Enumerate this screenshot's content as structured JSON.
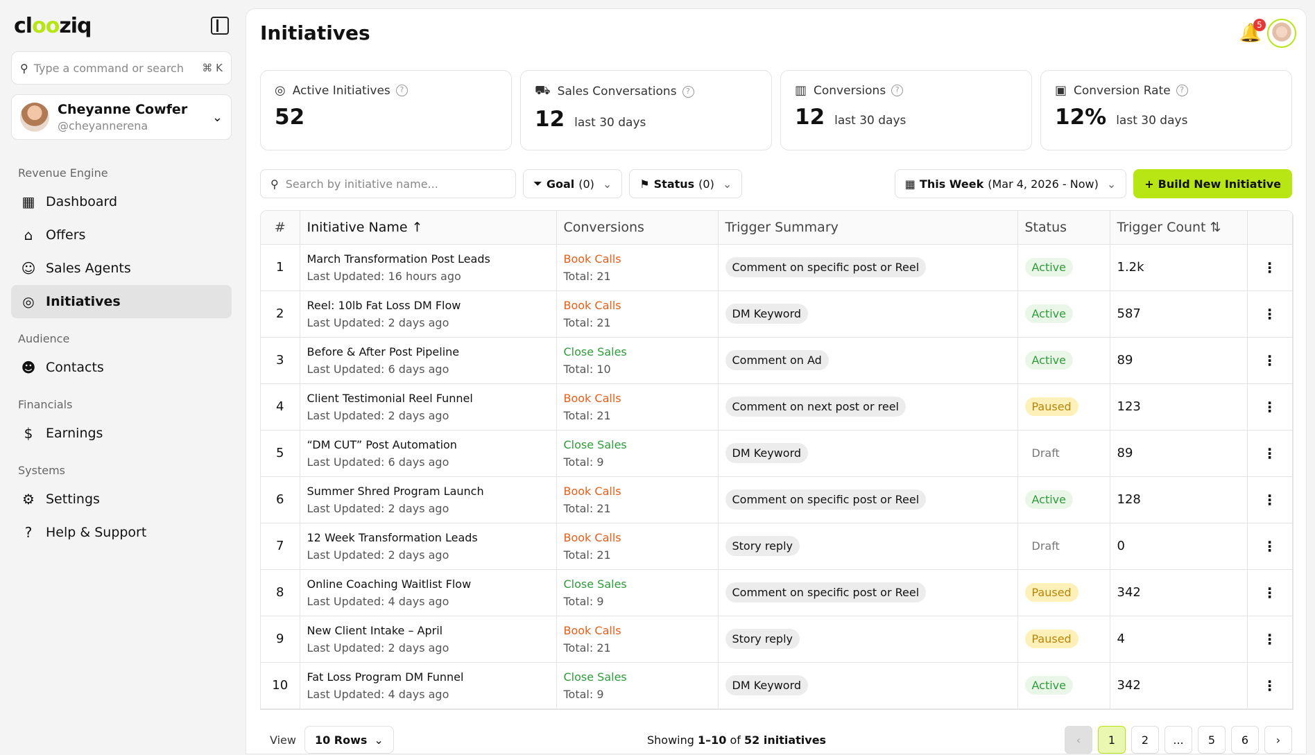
{
  "sidebar": {
    "logo_a": "cl",
    "logo_b": "oo",
    "logo_c": "ziq",
    "search_placeholder": "Type a command or search",
    "search_shortcut": "⌘ K",
    "user": {
      "name": "Cheyanne Cowfer",
      "handle": "@cheyannerena"
    },
    "sections": [
      {
        "label": "Revenue Engine",
        "items": [
          {
            "label": "Dashboard",
            "icon": "dashboard-icon",
            "glyph": "▦"
          },
          {
            "label": "Offers",
            "icon": "store-icon",
            "glyph": "⌂"
          },
          {
            "label": "Sales Agents",
            "icon": "chat-agent-icon",
            "glyph": "☺"
          },
          {
            "label": "Initiatives",
            "icon": "target-icon",
            "glyph": "◎",
            "active": true
          }
        ]
      },
      {
        "label": "Audience",
        "items": [
          {
            "label": "Contacts",
            "icon": "users-icon",
            "glyph": "☻"
          }
        ]
      },
      {
        "label": "Financials",
        "items": [
          {
            "label": "Earnings",
            "icon": "dollar-icon",
            "glyph": "$"
          }
        ]
      },
      {
        "label": "Systems",
        "items": [
          {
            "label": "Settings",
            "icon": "gear-icon",
            "glyph": "⚙"
          },
          {
            "label": "Help & Support",
            "icon": "help-icon",
            "glyph": "?"
          }
        ]
      }
    ]
  },
  "header": {
    "title": "Initiatives",
    "notifications": "5"
  },
  "stats": [
    {
      "label": "Active Initiatives",
      "value": "52",
      "sub": "",
      "icon": "target-icon",
      "glyph": "◎"
    },
    {
      "label": "Sales Conversations",
      "value": "12",
      "sub": "last 30 days",
      "icon": "cart-icon",
      "glyph": "⛟"
    },
    {
      "label": "Conversions",
      "value": "12",
      "sub": "last 30 days",
      "icon": "bar-chart-icon",
      "glyph": "▥"
    },
    {
      "label": "Conversion Rate",
      "value": "12%",
      "sub": "last 30 days",
      "icon": "camera-icon",
      "glyph": "▣"
    }
  ],
  "toolbar": {
    "search_placeholder": "Search by initiative name...",
    "goal_label": "Goal",
    "goal_count": "(0)",
    "status_label": "Status",
    "status_count": "(0)",
    "date_label": "This Week",
    "date_range": "(Mar 4, 2026 - Now)",
    "build_label": "Build New Initiative"
  },
  "table": {
    "headers": {
      "num": "#",
      "name": "Initiative Name",
      "conversions": "Conversions",
      "trigger": "Trigger Summary",
      "status": "Status",
      "count": "Trigger Count"
    },
    "rows": [
      {
        "n": "1",
        "name": "March Transformation Post Leads",
        "updated": "Last Updated: 16 hours ago",
        "conv": "Book Calls",
        "total": "Total: 21",
        "trigger": "Comment on specific post or Reel",
        "status": "Active",
        "count": "1.2k"
      },
      {
        "n": "2",
        "name": "Reel: 10lb Fat Loss DM Flow",
        "updated": "Last Updated: 2 days ago",
        "conv": "Book Calls",
        "total": "Total: 21",
        "trigger": "DM Keyword",
        "status": "Active",
        "count": "587"
      },
      {
        "n": "3",
        "name": "Before & After Post Pipeline",
        "updated": "Last Updated: 6 days ago",
        "conv": "Close Sales",
        "total": "Total: 10",
        "trigger": "Comment on Ad",
        "status": "Active",
        "count": "89"
      },
      {
        "n": "4",
        "name": "Client Testimonial Reel Funnel",
        "updated": "Last Updated: 2 days ago",
        "conv": "Book Calls",
        "total": "Total: 21",
        "trigger": "Comment on next post or reel",
        "status": "Paused",
        "count": "123"
      },
      {
        "n": "5",
        "name": "“DM CUT” Post Automation",
        "updated": "Last Updated: 6 days ago",
        "conv": "Close Sales",
        "total": "Total: 9",
        "trigger": "DM Keyword",
        "status": "Draft",
        "count": "89"
      },
      {
        "n": "6",
        "name": "Summer Shred Program Launch",
        "updated": "Last Updated: 2 days ago",
        "conv": "Book Calls",
        "total": "Total: 21",
        "trigger": "Comment on specific post or Reel",
        "status": "Active",
        "count": "128"
      },
      {
        "n": "7",
        "name": "12 Week Transformation Leads",
        "updated": "Last Updated: 2 days ago",
        "conv": "Book Calls",
        "total": "Total: 21",
        "trigger": "Story reply",
        "status": "Draft",
        "count": "0"
      },
      {
        "n": "8",
        "name": "Online Coaching Waitlist Flow",
        "updated": "Last Updated: 4 days ago",
        "conv": "Close Sales",
        "total": "Total: 9",
        "trigger": "Comment on specific post or Reel",
        "status": "Paused",
        "count": "342"
      },
      {
        "n": "9",
        "name": "New Client Intake – April",
        "updated": "Last Updated: 2 days ago",
        "conv": "Book Calls",
        "total": "Total: 21",
        "trigger": "Story reply",
        "status": "Paused",
        "count": "4"
      },
      {
        "n": "10",
        "name": "Fat Loss Program DM Funnel",
        "updated": "Last Updated: 4 days ago",
        "conv": "Close Sales",
        "total": "Total: 9",
        "trigger": "DM Keyword",
        "status": "Active",
        "count": "342"
      }
    ]
  },
  "footer": {
    "view_label": "View",
    "rows_label": "10 Rows",
    "showing_a": "Showing ",
    "showing_b": "1–10",
    "showing_c": " of ",
    "showing_d": "52 initiatives",
    "pages": [
      "1",
      "2",
      "...",
      "5",
      "6"
    ]
  }
}
